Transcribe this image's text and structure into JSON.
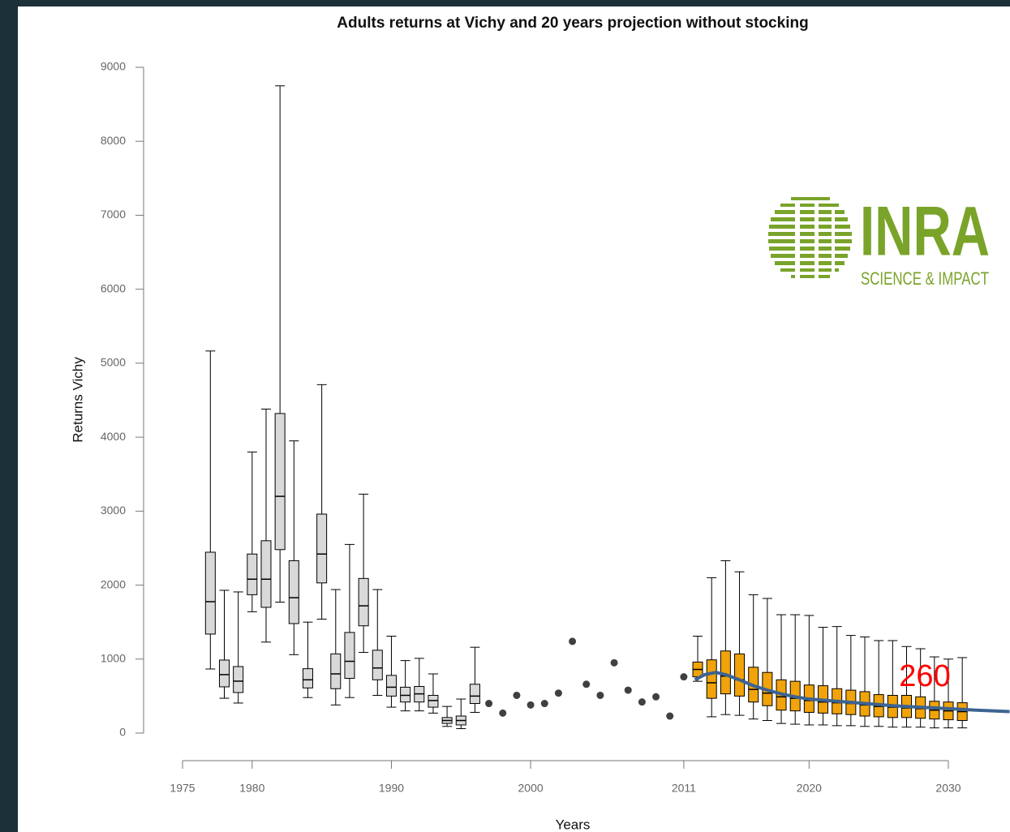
{
  "chart_data": {
    "type": "box",
    "title": "Adults returns at Vichy and 20 years projection without stocking",
    "xlabel": "Years",
    "ylabel": "Returns Vichy",
    "xlim": [
      1975,
      2030
    ],
    "ylim": [
      0,
      9000
    ],
    "xticks": [
      1975,
      1980,
      1990,
      2000,
      2011,
      2020,
      2030
    ],
    "yticks": [
      0,
      1000,
      2000,
      3000,
      4000,
      5000,
      6000,
      7000,
      8000,
      9000
    ],
    "historic_boxes": {
      "color": "#d9d9d9",
      "x": [
        1977,
        1978,
        1979,
        1980,
        1981,
        1982,
        1983,
        1984,
        1985,
        1986,
        1987,
        1988,
        1989,
        1990,
        1991,
        1992,
        1993,
        1994,
        1995,
        1996
      ],
      "low": [
        866,
        471,
        406,
        1640,
        1230,
        1770,
        1060,
        480,
        1540,
        380,
        480,
        1090,
        510,
        350,
        300,
        300,
        270,
        90,
        60,
        280
      ],
      "q1": [
        1338,
        625,
        548,
        1870,
        1700,
        2480,
        1480,
        610,
        2030,
        600,
        740,
        1450,
        720,
        500,
        420,
        420,
        350,
        130,
        110,
        400
      ],
      "median": [
        1776,
        790,
        702,
        2080,
        2080,
        3200,
        1830,
        720,
        2420,
        800,
        970,
        1720,
        880,
        620,
        510,
        530,
        440,
        170,
        170,
        500
      ],
      "q3": [
        2445,
        987,
        899,
        2420,
        2600,
        4320,
        2330,
        870,
        2960,
        1070,
        1360,
        2090,
        1120,
        780,
        620,
        630,
        510,
        210,
        230,
        660
      ],
      "high": [
        5165,
        1930,
        1908,
        3800,
        4380,
        8750,
        3950,
        1500,
        4710,
        1940,
        2550,
        3230,
        1940,
        1310,
        980,
        1010,
        800,
        360,
        460,
        1160
      ]
    },
    "points": {
      "color": "#404040",
      "x": [
        1997,
        1998,
        1999,
        2000,
        2001,
        2002,
        2003,
        2004,
        2005,
        2006,
        2007,
        2008,
        2009,
        2010,
        2011
      ],
      "values": [
        400,
        270,
        510,
        380,
        400,
        540,
        1240,
        660,
        510,
        950,
        580,
        420,
        490,
        230,
        760
      ]
    },
    "projection_boxes": {
      "color": "#f0a30a",
      "x": [
        2012,
        2013,
        2014,
        2015,
        2016,
        2017,
        2018,
        2019,
        2020,
        2021,
        2022,
        2023,
        2024,
        2025,
        2026,
        2027,
        2028,
        2029,
        2030,
        2031
      ],
      "low": [
        700,
        220,
        250,
        240,
        190,
        170,
        130,
        120,
        110,
        110,
        100,
        100,
        90,
        90,
        80,
        80,
        80,
        70,
        70,
        70
      ],
      "q1": [
        760,
        470,
        530,
        500,
        420,
        370,
        310,
        300,
        280,
        270,
        260,
        250,
        230,
        220,
        210,
        210,
        200,
        190,
        180,
        170
      ],
      "median": [
        860,
        680,
        770,
        720,
        590,
        540,
        490,
        470,
        440,
        420,
        410,
        400,
        380,
        360,
        350,
        340,
        330,
        310,
        300,
        290
      ],
      "q3": [
        960,
        990,
        1110,
        1070,
        890,
        820,
        720,
        700,
        650,
        640,
        600,
        580,
        560,
        520,
        510,
        510,
        490,
        430,
        420,
        410
      ],
      "high": [
        1310,
        2100,
        2330,
        2180,
        1870,
        1820,
        1600,
        1600,
        1590,
        1430,
        1440,
        1320,
        1300,
        1250,
        1250,
        1170,
        1140,
        1030,
        1000,
        1020
      ]
    },
    "line": {
      "color": "#3d6391",
      "x": [
        2011.8,
        2012.5,
        2013.3,
        2014,
        2015,
        2016,
        2017,
        2018,
        2019,
        2020,
        2022,
        2024,
        2026,
        2028,
        2030,
        2032,
        2034.4
      ],
      "values": [
        720,
        790,
        820,
        790,
        720,
        640,
        580,
        530,
        490,
        460,
        430,
        400,
        370,
        350,
        330,
        310,
        290
      ]
    },
    "annotation": "260",
    "logo": {
      "name": "INRA",
      "tagline": "SCIENCE & IMPACT"
    }
  }
}
